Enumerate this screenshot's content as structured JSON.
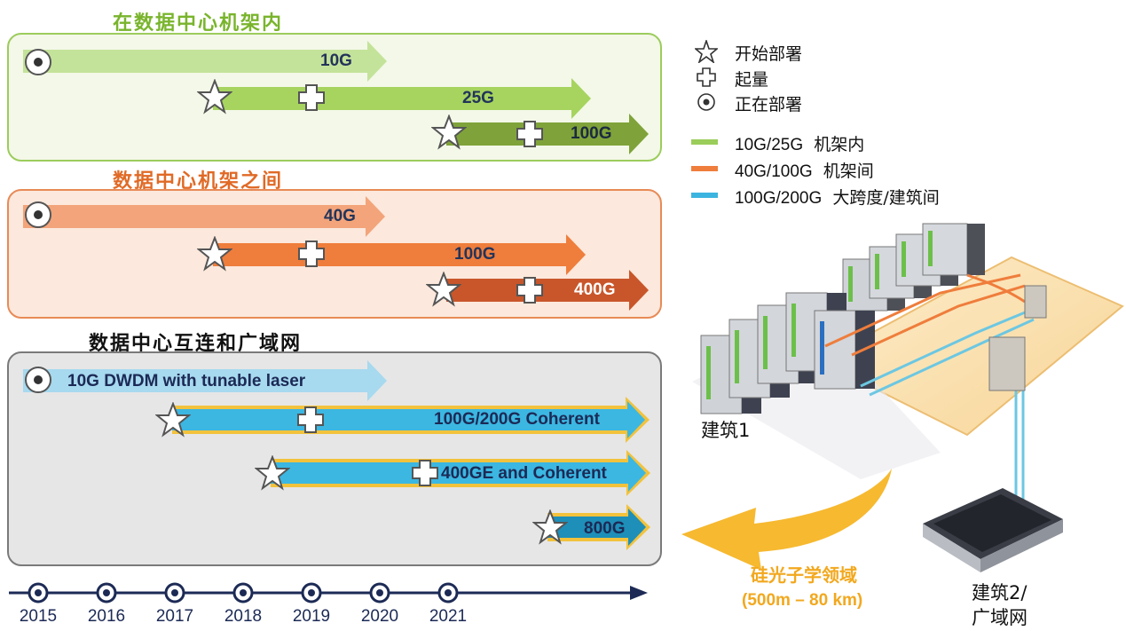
{
  "legend": {
    "start": "开始部署",
    "ramp": "起量",
    "deploying": "正在部署",
    "items": [
      {
        "code": "10G/25G",
        "desc": "机架内",
        "color": "#9acd5a"
      },
      {
        "code": "40G/100G",
        "desc": "机架间",
        "color": "#ef7d3c"
      },
      {
        "code": "100G/200G",
        "desc": "大跨度/建筑间",
        "color": "#3cb4e0"
      }
    ]
  },
  "panels": {
    "intra": {
      "title": "在数据中心机架内",
      "title_color": "#79b42c",
      "arrows": [
        {
          "label": "10G",
          "marker": "deploying"
        },
        {
          "label": "25G",
          "marker": "start-ramp"
        },
        {
          "label": "100G",
          "marker": "start-ramp"
        }
      ]
    },
    "inter": {
      "title": "数据中心机架之间",
      "title_color": "#e06a26",
      "arrows": [
        {
          "label": "40G",
          "marker": "deploying"
        },
        {
          "label": "100G",
          "marker": "start-ramp"
        },
        {
          "label": "400G",
          "marker": "start-ramp"
        }
      ]
    },
    "dci": {
      "title": "数据中心互连和广域网",
      "title_color": "#111111",
      "arrows": [
        {
          "label": "10G DWDM with  tunable laser",
          "marker": "deploying"
        },
        {
          "label": "100G/200G Coherent",
          "marker": "start-ramp"
        },
        {
          "label": "400GE and Coherent",
          "marker": "start-ramp"
        },
        {
          "label": "800G",
          "marker": "start"
        }
      ]
    }
  },
  "timeline": {
    "years": [
      "2015",
      "2016",
      "2017",
      "2018",
      "2019",
      "2020",
      "2021"
    ]
  },
  "illustration": {
    "building1": "建筑1",
    "building2_line1": "建筑2/",
    "building2_line2": "广域网",
    "silicon_photonics": "硅光子学领域",
    "range": "(500m – 80 km)"
  }
}
